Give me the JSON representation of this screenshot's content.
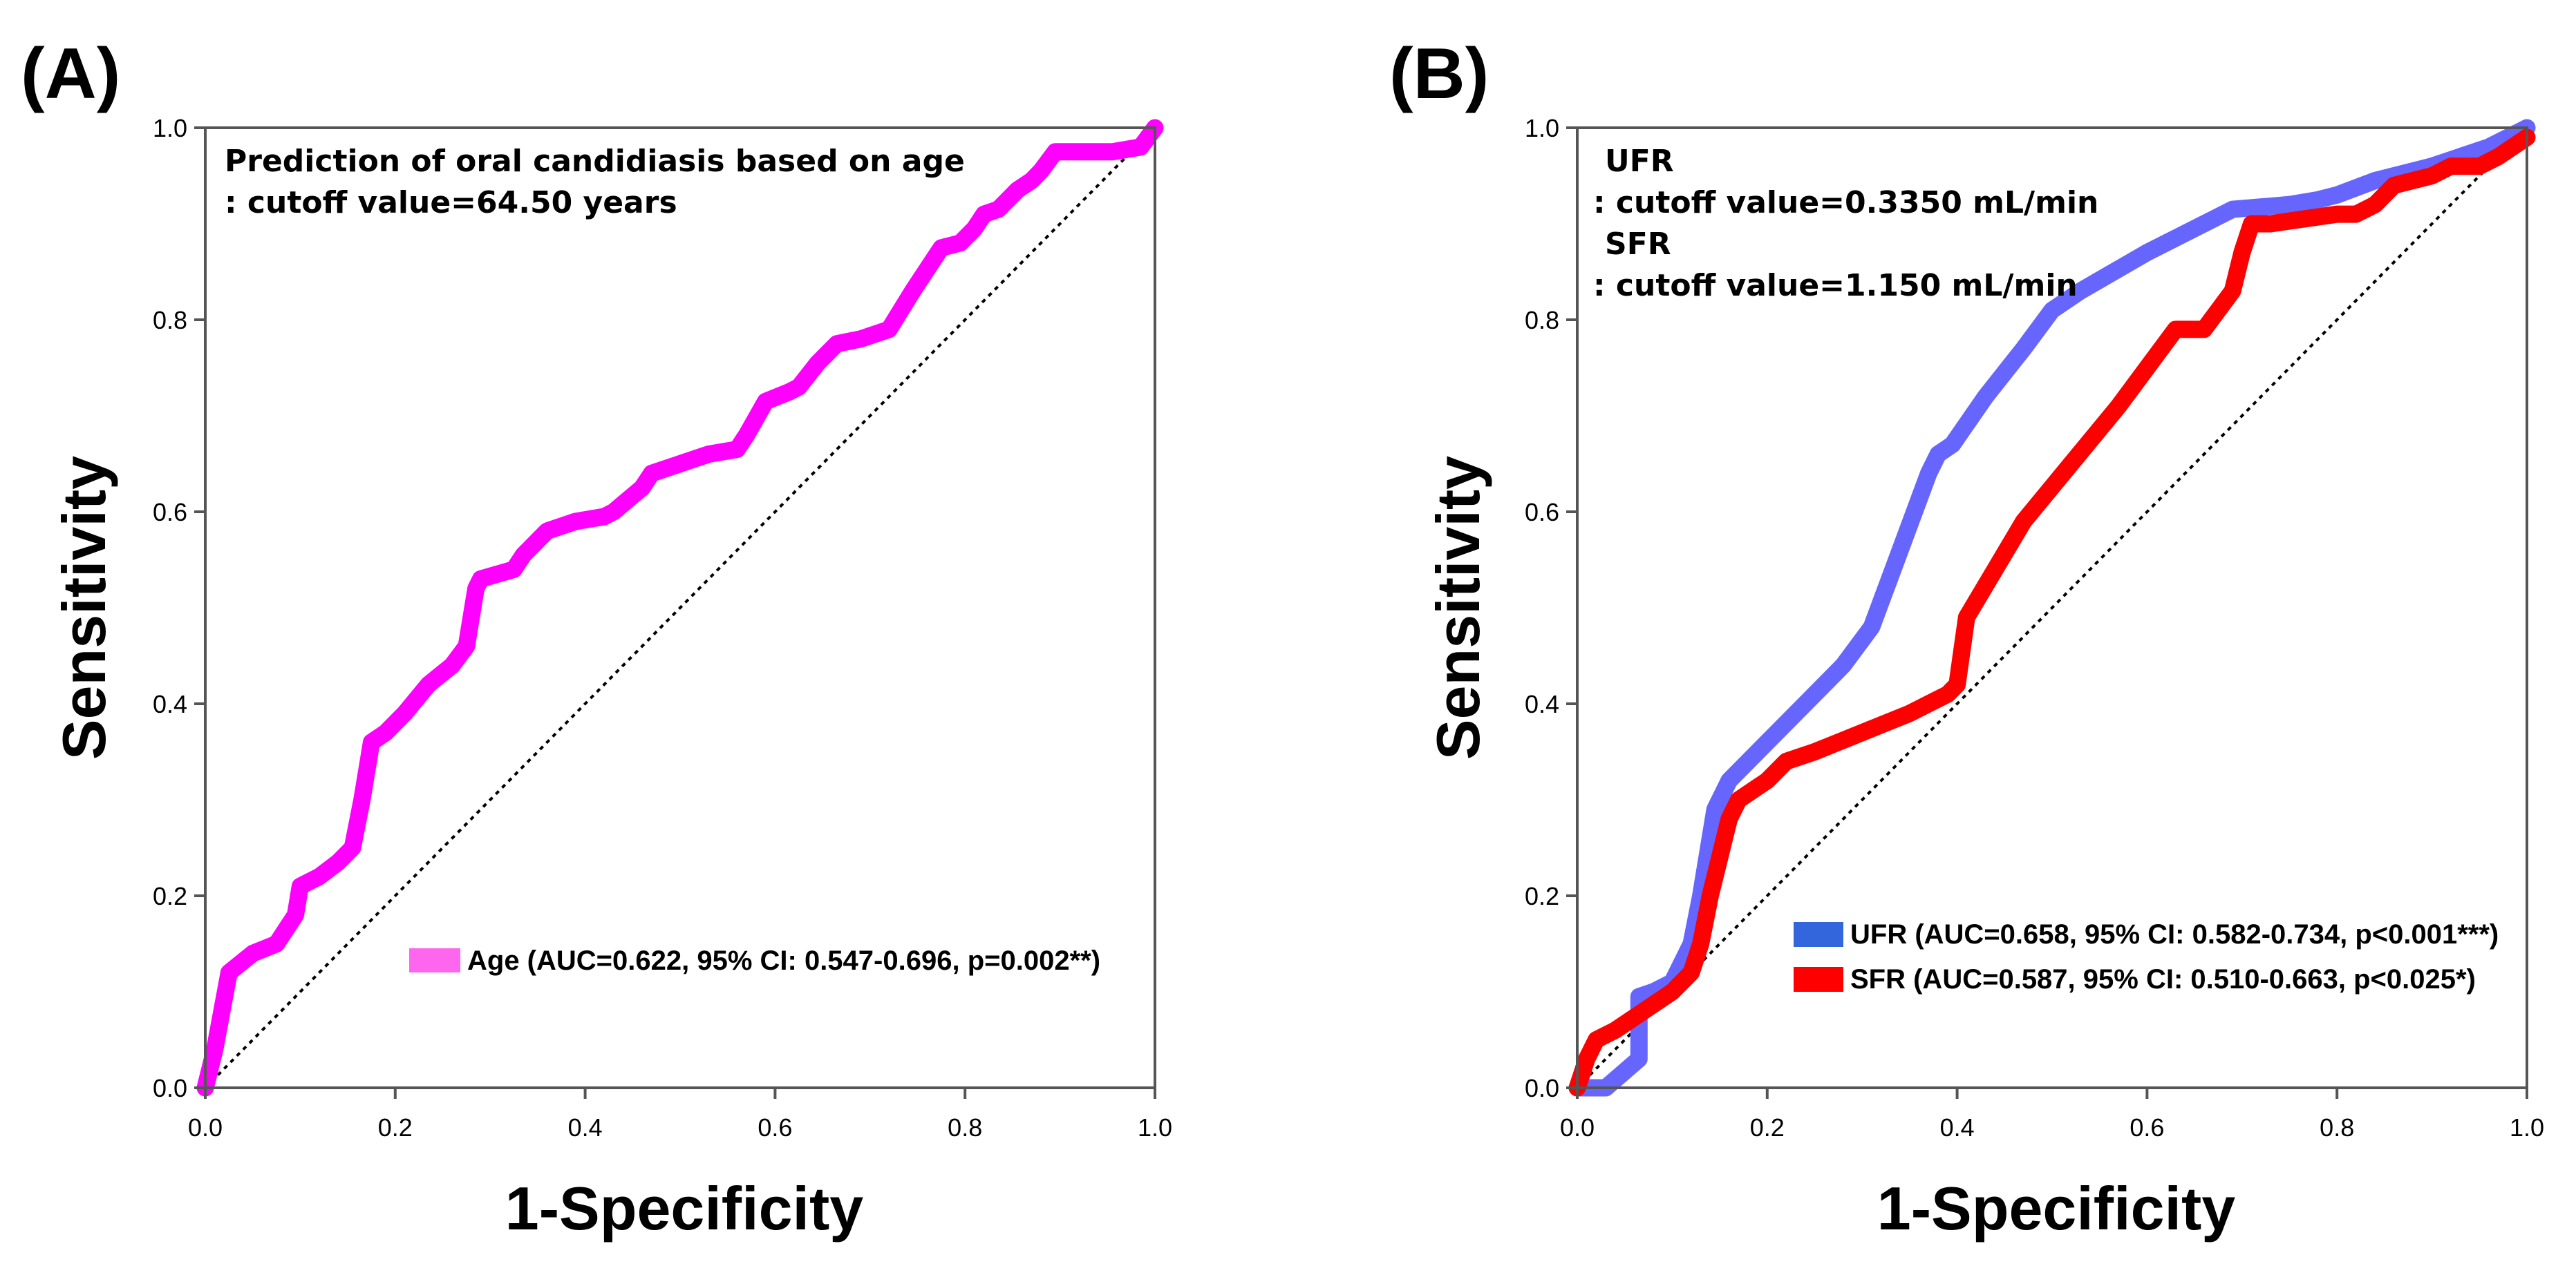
{
  "chart_data": [
    {
      "panel_label": "(A)",
      "type": "line",
      "xlabel": "1-Specificity",
      "ylabel": "Sensitivity",
      "xlim": [
        0,
        1
      ],
      "ylim": [
        0,
        1
      ],
      "xticks": [
        "0.0",
        "0.2",
        "0.4",
        "0.6",
        "0.8",
        "1.0"
      ],
      "yticks": [
        "0.0",
        "0.2",
        "0.4",
        "0.6",
        "0.8",
        "1.0"
      ],
      "annotation": [
        "Prediction of oral candidiasis based on age",
        ": cutoff value=64.50 years"
      ],
      "reference_line": {
        "x": [
          0,
          1
        ],
        "y": [
          0,
          1
        ]
      },
      "series": [
        {
          "name": "Age (AUC=0.622, 95% CI: 0.547-0.696, p=0.002**)",
          "color": "#ff00ff",
          "legend_color": "#ff66ee",
          "x": [
            0.0,
            0.01,
            0.025,
            0.05,
            0.075,
            0.095,
            0.1,
            0.12,
            0.14,
            0.155,
            0.165,
            0.175,
            0.19,
            0.21,
            0.235,
            0.26,
            0.275,
            0.285,
            0.29,
            0.325,
            0.335,
            0.36,
            0.39,
            0.42,
            0.43,
            0.46,
            0.47,
            0.5,
            0.53,
            0.56,
            0.57,
            0.59,
            0.615,
            0.625,
            0.645,
            0.665,
            0.69,
            0.72,
            0.745,
            0.765,
            0.775,
            0.795,
            0.81,
            0.82,
            0.835,
            0.845,
            0.855,
            0.87,
            0.88,
            0.895,
            0.925,
            0.955,
            0.985,
            1.0
          ],
          "y": [
            0.0,
            0.04,
            0.12,
            0.14,
            0.15,
            0.18,
            0.21,
            0.22,
            0.235,
            0.25,
            0.3,
            0.36,
            0.37,
            0.39,
            0.42,
            0.44,
            0.46,
            0.52,
            0.53,
            0.54,
            0.555,
            0.58,
            0.59,
            0.595,
            0.6,
            0.625,
            0.64,
            0.65,
            0.66,
            0.665,
            0.68,
            0.715,
            0.725,
            0.73,
            0.755,
            0.775,
            0.78,
            0.79,
            0.83,
            0.86,
            0.875,
            0.88,
            0.895,
            0.91,
            0.915,
            0.925,
            0.935,
            0.945,
            0.955,
            0.975,
            0.975,
            0.975,
            0.98,
            1.0
          ]
        }
      ]
    },
    {
      "panel_label": "(B)",
      "type": "line",
      "xlabel": "1-Specificity",
      "ylabel": "Sensitivity",
      "xlim": [
        0,
        1
      ],
      "ylim": [
        0,
        1
      ],
      "xticks": [
        "0.0",
        "0.2",
        "0.4",
        "0.6",
        "0.8",
        "1.0"
      ],
      "yticks": [
        "0.0",
        "0.2",
        "0.4",
        "0.6",
        "0.8",
        "1.0"
      ],
      "annotation": [
        "UFR",
        ": cutoff value=0.3350 mL/min",
        "SFR",
        ": cutoff value=1.150 mL/min"
      ],
      "reference_line": {
        "x": [
          0,
          1
        ],
        "y": [
          0,
          1
        ]
      },
      "series": [
        {
          "name": "UFR (AUC=0.658, 95% CI: 0.582-0.734, p<0.001***)",
          "color": "#6666ff",
          "legend_color": "#3366dd",
          "x": [
            0.0,
            0.03,
            0.065,
            0.065,
            0.08,
            0.1,
            0.12,
            0.13,
            0.145,
            0.16,
            0.2,
            0.24,
            0.28,
            0.31,
            0.34,
            0.37,
            0.38,
            0.395,
            0.43,
            0.47,
            0.5,
            0.53,
            0.6,
            0.69,
            0.75,
            0.78,
            0.8,
            0.84,
            0.9,
            0.96,
            1.0
          ],
          "y": [
            0.0,
            0.0,
            0.03,
            0.095,
            0.1,
            0.11,
            0.15,
            0.2,
            0.29,
            0.32,
            0.36,
            0.4,
            0.44,
            0.48,
            0.56,
            0.64,
            0.66,
            0.67,
            0.72,
            0.77,
            0.81,
            0.83,
            0.87,
            0.915,
            0.92,
            0.925,
            0.93,
            0.945,
            0.96,
            0.98,
            1.0
          ]
        },
        {
          "name": "SFR (AUC=0.587, 95% CI: 0.510-0.663, p<0.025*)",
          "color": "#ff0000",
          "legend_color": "#ff0000",
          "x": [
            0.0,
            0.01,
            0.02,
            0.04,
            0.07,
            0.1,
            0.12,
            0.13,
            0.14,
            0.15,
            0.16,
            0.17,
            0.2,
            0.22,
            0.25,
            0.3,
            0.35,
            0.39,
            0.4,
            0.41,
            0.44,
            0.47,
            0.52,
            0.57,
            0.6,
            0.63,
            0.66,
            0.69,
            0.7,
            0.71,
            0.73,
            0.8,
            0.82,
            0.84,
            0.86,
            0.9,
            0.92,
            0.95,
            0.97,
            1.0
          ],
          "y": [
            0.0,
            0.03,
            0.05,
            0.06,
            0.08,
            0.1,
            0.12,
            0.15,
            0.2,
            0.24,
            0.28,
            0.3,
            0.32,
            0.34,
            0.35,
            0.37,
            0.39,
            0.41,
            0.42,
            0.49,
            0.54,
            0.59,
            0.65,
            0.71,
            0.75,
            0.79,
            0.79,
            0.83,
            0.87,
            0.9,
            0.9,
            0.91,
            0.91,
            0.92,
            0.94,
            0.95,
            0.96,
            0.96,
            0.97,
            0.99
          ]
        }
      ]
    }
  ]
}
